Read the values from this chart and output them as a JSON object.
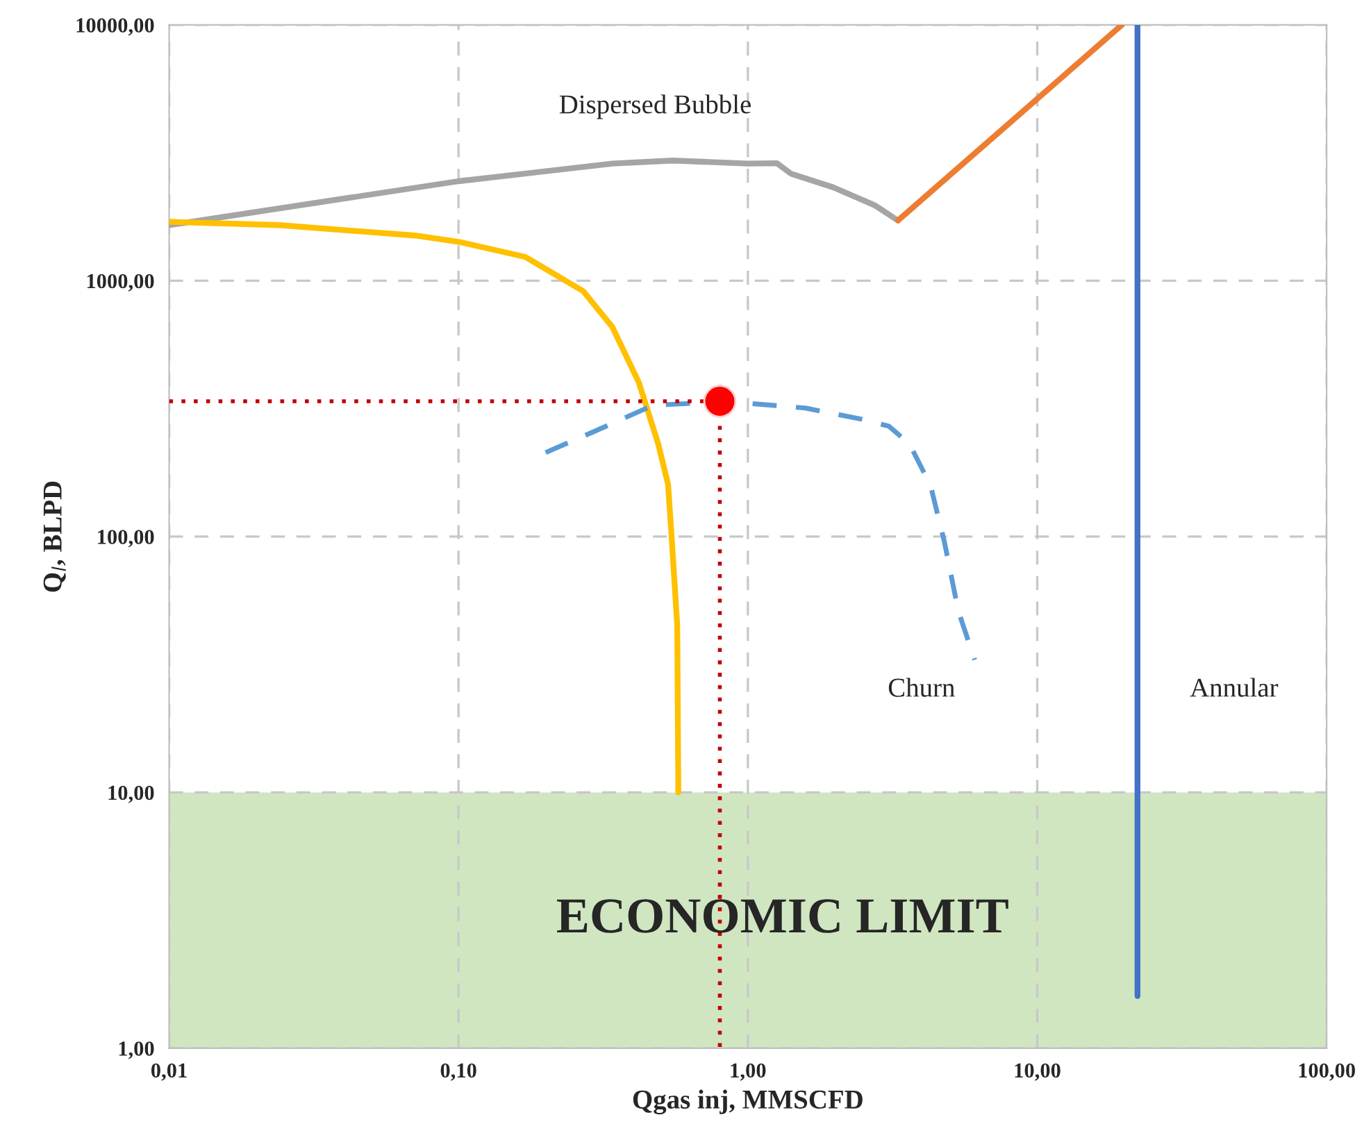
{
  "chart_data": {
    "type": "line",
    "xlabel": "Qgas inj, MMSCFD",
    "ylabel": "Q$_{l}$, BLPD",
    "log": "xy",
    "grid": true,
    "xlim": [
      0.01,
      100
    ],
    "ylim": [
      1,
      10000
    ],
    "xticks": [
      {
        "value": 0.01,
        "label": "0,01"
      },
      {
        "value": 0.1,
        "label": "0,10"
      },
      {
        "value": 1,
        "label": "1,00"
      },
      {
        "value": 10,
        "label": "10,00"
      },
      {
        "value": 100,
        "label": "100,00"
      }
    ],
    "yticks": [
      {
        "value": 1,
        "label": "1,00"
      },
      {
        "value": 10,
        "label": "10,00"
      },
      {
        "value": 100,
        "label": "100,00"
      },
      {
        "value": 1000,
        "label": "1000,00"
      },
      {
        "value": 10000,
        "label": "10000,00"
      }
    ],
    "series": [
      {
        "color": "#a5a5a5",
        "line_style": "solid",
        "x": [
          0.01,
          0.1,
          0.34,
          0.55,
          1.0,
          1.26,
          1.41,
          1.97,
          2.75,
          3.3
        ],
        "values": [
          1650,
          2450,
          2870,
          2950,
          2870,
          2880,
          2620,
          2320,
          1970,
          1720
        ]
      },
      {
        "color": "#ed7d31",
        "line_style": "solid",
        "x": [
          3.3,
          19.6
        ],
        "values": [
          1720,
          10000
        ]
      },
      {
        "color": "#4472c4",
        "line_style": "solid",
        "x": [
          22.2,
          22.2
        ],
        "values": [
          1.6,
          10000
        ]
      },
      {
        "color": "#ffc000",
        "line_style": "solid",
        "x": [
          0.01,
          0.024,
          0.072,
          0.1,
          0.17,
          0.27,
          0.34,
          0.42,
          0.49,
          0.53,
          0.545,
          0.57,
          0.575
        ],
        "values": [
          1700,
          1650,
          1500,
          1420,
          1240,
          910,
          660,
          400,
          230,
          160,
          100,
          45,
          10
        ]
      },
      {
        "color": "#5b9bd5",
        "line_style": "dashed",
        "x": [
          0.2,
          0.3,
          0.47,
          0.65,
          1.0,
          1.58,
          2.46,
          3.07,
          3.62,
          4.28,
          4.77,
          5.34,
          6.08
        ],
        "values": [
          213,
          260,
          326,
          332,
          332,
          318,
          288,
          270,
          230,
          158,
          96,
          51,
          33
        ]
      },
      {
        "color": "#c00000",
        "line_style": "dotted",
        "x": [
          0.01,
          0.8
        ],
        "values": [
          338,
          338
        ]
      },
      {
        "color": "#c00000",
        "line_style": "dotted",
        "x": [
          0.8,
          0.8
        ],
        "values": [
          338,
          1
        ]
      },
      {
        "type": "scatter",
        "color": "#ff0000",
        "marker": "circle",
        "x": [
          0.8
        ],
        "values": [
          338
        ]
      }
    ],
    "bands": [
      {
        "axis": "y",
        "from": 1,
        "to": 10,
        "label": "ECONOMIC LIMIT",
        "color": "#a9d18e"
      }
    ],
    "annotations": [
      "Dispersed Bubble",
      "Churn",
      "Annular"
    ]
  }
}
